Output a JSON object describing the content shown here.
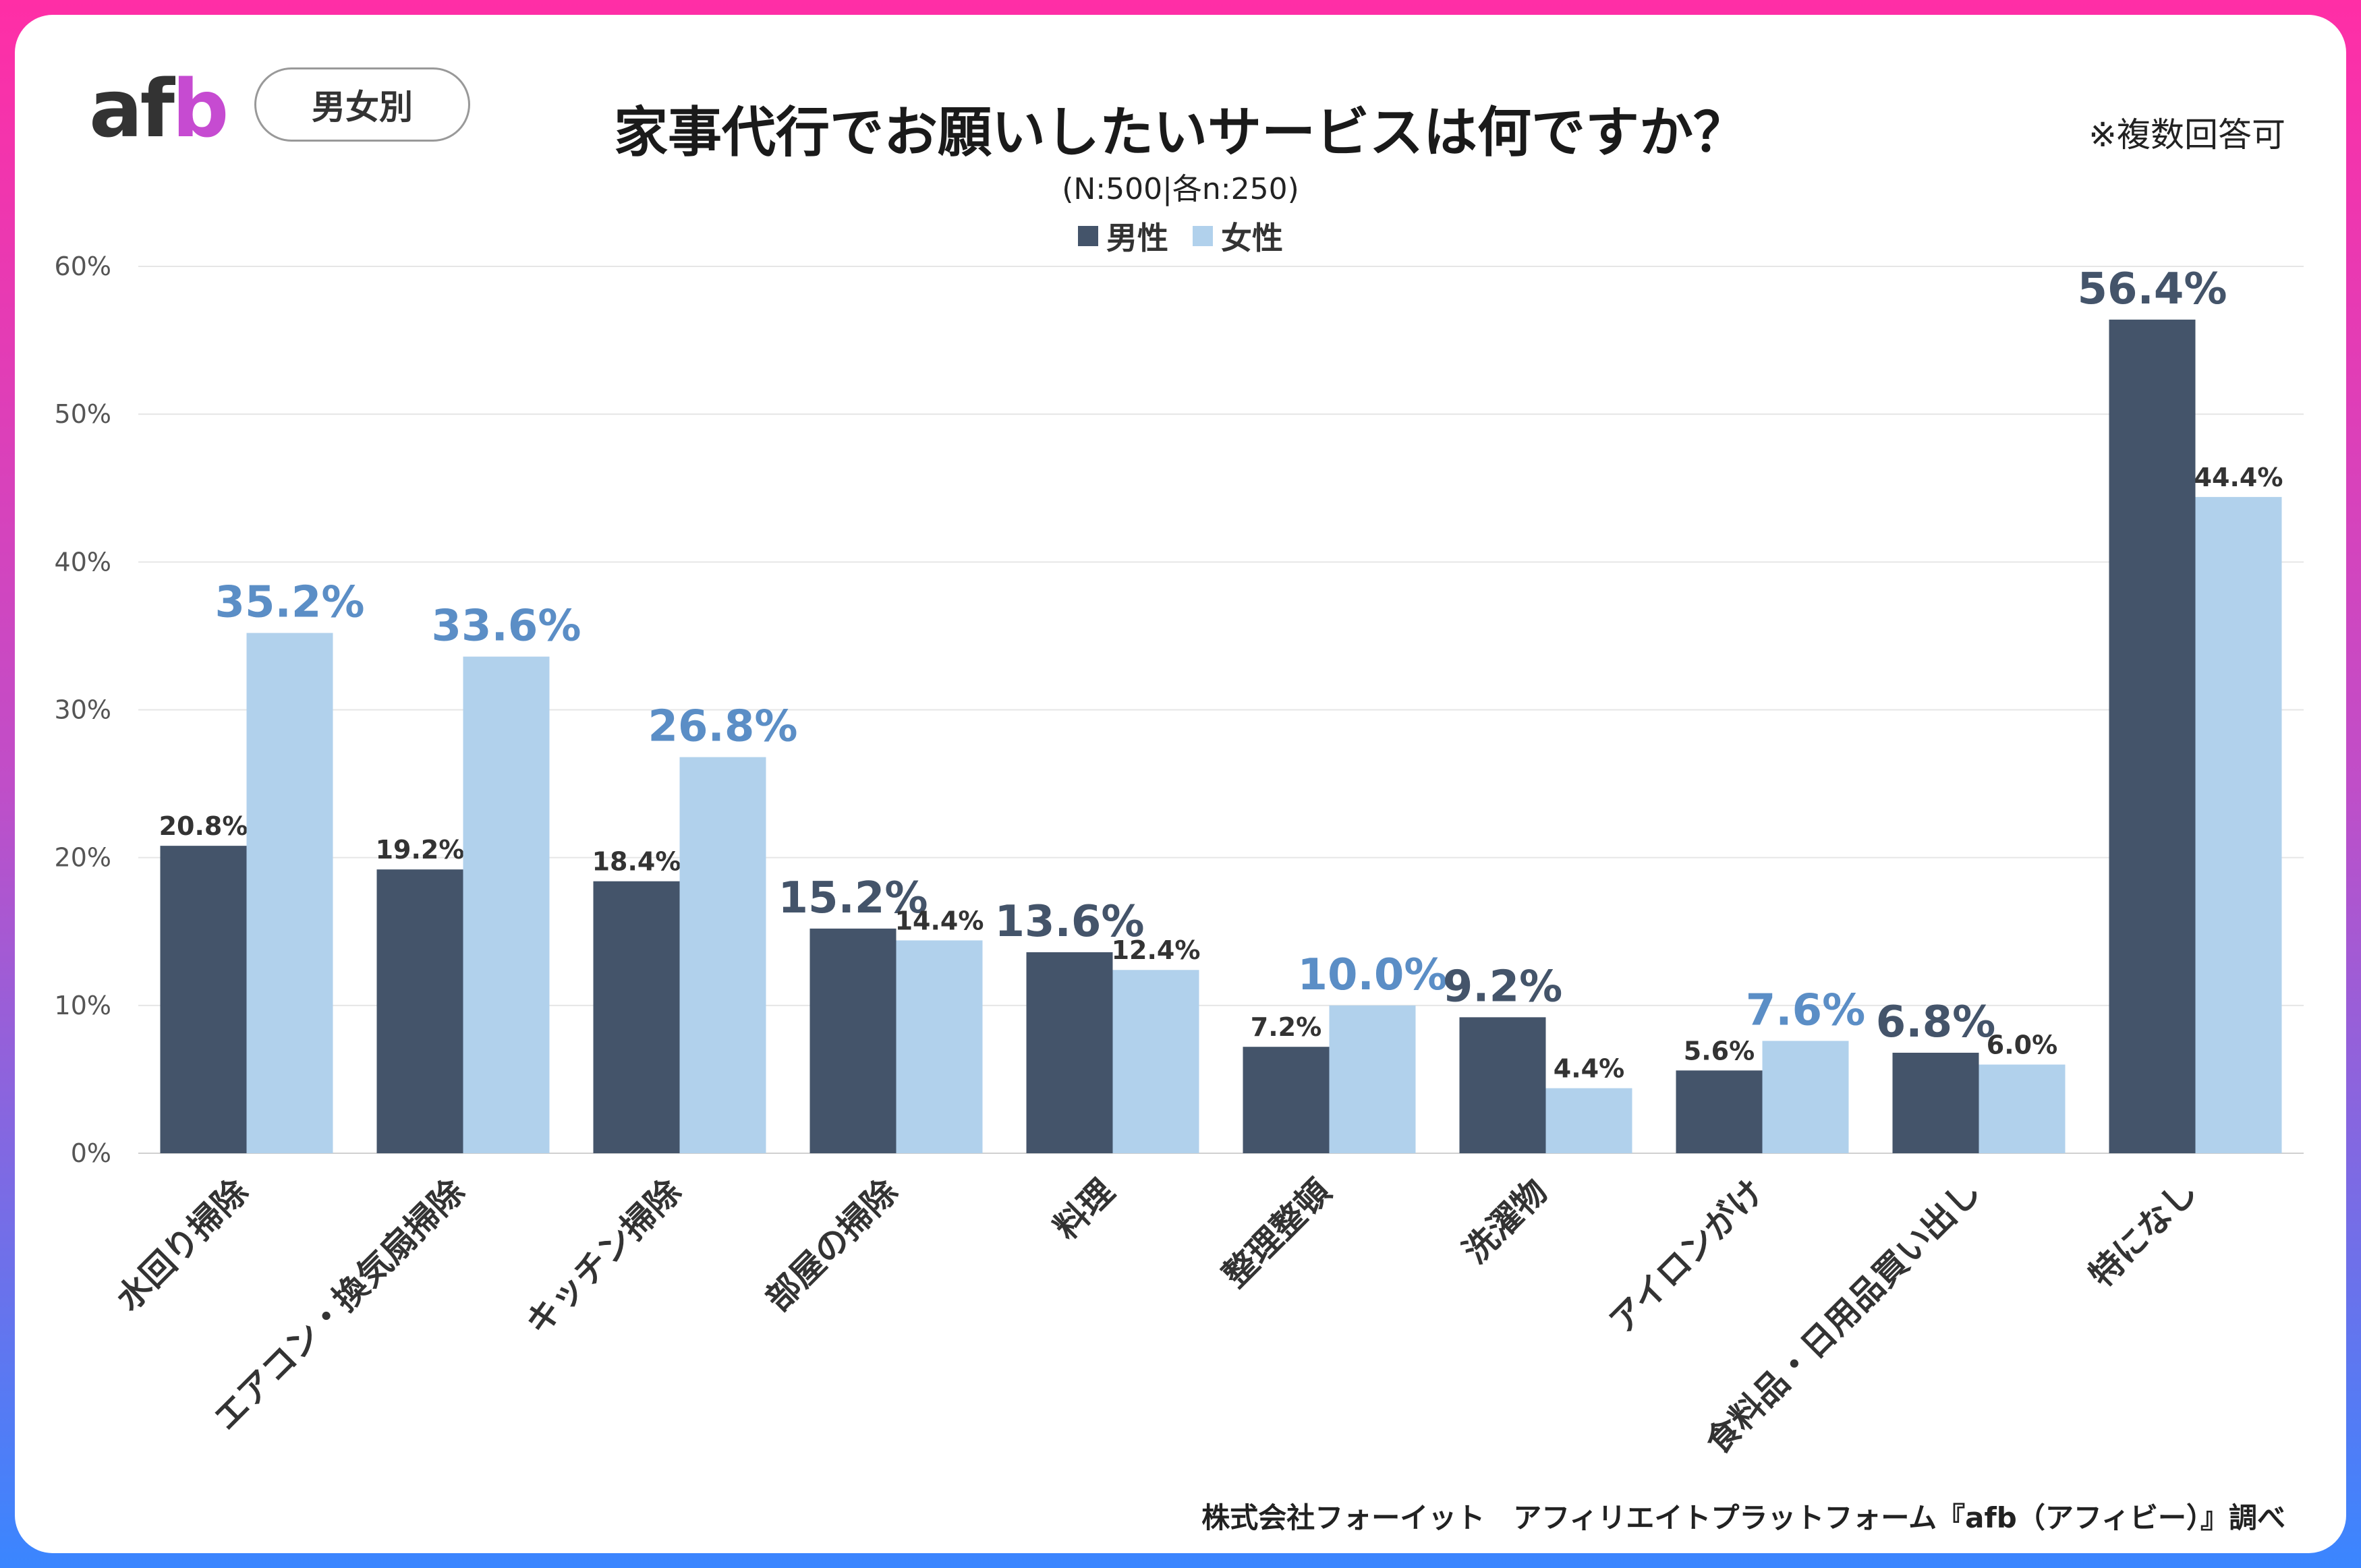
{
  "logo": "afb",
  "tag": "男女別",
  "title": "家事代行でお願いしたいサービスは何ですか？",
  "subtitle": "(N:500|各n:250)",
  "note": "※複数回答可",
  "source": "株式会社フォーイット　アフィリエイトプラットフォーム『afb（アフィビー）』調べ",
  "colors": {
    "male": "#44546a",
    "female": "#b1d1ec",
    "highlight_female": "#5b8ec6",
    "highlight_male": "#44546a"
  },
  "chart_data": {
    "type": "bar",
    "categories": [
      "水回り掃除",
      "エアコン・換気扇掃除",
      "キッチン掃除",
      "部屋の掃除",
      "料理",
      "整理整頓",
      "洗濯物",
      "アイロンがけ",
      "食料品・日用品買い出し",
      "特になし"
    ],
    "series": [
      {
        "name": "男性",
        "values": [
          20.8,
          19.2,
          18.4,
          15.2,
          13.6,
          7.2,
          9.2,
          5.6,
          6.8,
          56.4
        ]
      },
      {
        "name": "女性",
        "values": [
          35.2,
          33.6,
          26.8,
          14.4,
          12.4,
          10.0,
          4.4,
          7.6,
          6.0,
          44.4
        ]
      }
    ],
    "value_labels": [
      [
        "20.8%",
        "19.2%",
        "18.4%",
        "15.2%",
        "13.6%",
        "7.2%",
        "9.2%",
        "5.6%",
        "6.8%",
        "56.4%"
      ],
      [
        "35.2%",
        "33.6%",
        "26.8%",
        "14.4%",
        "12.4%",
        "10.0%",
        "4.4%",
        "7.6%",
        "6.0%",
        "44.4%"
      ]
    ],
    "highlight": [
      [
        false,
        false,
        false,
        true,
        true,
        false,
        true,
        false,
        true,
        true
      ],
      [
        true,
        true,
        true,
        false,
        false,
        true,
        false,
        true,
        false,
        false
      ]
    ],
    "y_ticks": [
      "0%",
      "10%",
      "20%",
      "30%",
      "40%",
      "50%",
      "60%"
    ],
    "ylim": [
      0,
      60
    ],
    "grid": true,
    "legend_position": "top-center"
  }
}
